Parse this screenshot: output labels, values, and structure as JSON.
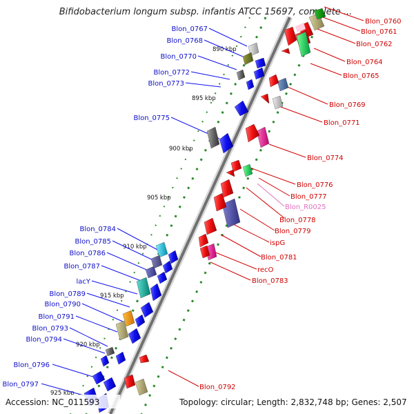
{
  "title": "Bifidobacterium longum subsp. infantis ATCC 15697, complete ...",
  "accession": "Accession: NC_011593",
  "topology": "Topology: circular; Length: 2,832,748 bp; Genes: 2,507",
  "scale_labels": [
    "890 kbp",
    "895 kbp",
    "900 kbp",
    "905 kbp",
    "910 kbp",
    "915 kbp",
    "920 kbp",
    "925 kbp"
  ],
  "left_labels": [
    "Blon_0767",
    "Blon_0768",
    "Blon_0770",
    "Blon_0772",
    "Blon_0773",
    "Blon_0775",
    "Blon_0784",
    "Blon_0785",
    "Blon_0786",
    "Blon_0787",
    "lacY",
    "Blon_0789",
    "Blon_0790",
    "Blon_0791",
    "Blon_0793",
    "Blon_0794",
    "Blon_0796",
    "Blon_0797"
  ],
  "right_labels": [
    "Blon_0760",
    "Blon_0761",
    "Blon_0762",
    "Blon_0764",
    "Blon_0765",
    "Blon_0769",
    "Blon_0771",
    "Blon_0774",
    "Blon_0776",
    "Blon_0777",
    "Blon_R0025",
    "Blon_0778",
    "Blon_0779",
    "ispG",
    "Blon_0781",
    "recO",
    "Blon_0783",
    "Blon_0792"
  ],
  "colors": {
    "backbone": "#707070",
    "dots": "#2a8a2a",
    "forward_gene": "#1010ee",
    "reverse_gene": "#ee1010",
    "label_forward": "#1010c8",
    "label_reverse": "#d00000",
    "label_rna": "#e070c0"
  }
}
